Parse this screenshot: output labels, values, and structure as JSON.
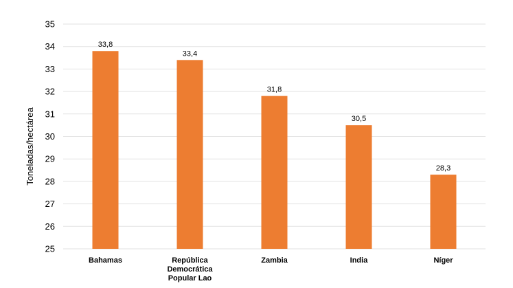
{
  "chart_data": {
    "type": "bar",
    "categories": [
      [
        "Bahamas"
      ],
      [
        "República",
        "Democrática",
        "Popular Lao"
      ],
      [
        "Zambia"
      ],
      [
        "India"
      ],
      [
        "Níger"
      ]
    ],
    "values": [
      33.8,
      33.4,
      31.8,
      30.5,
      28.3
    ],
    "value_labels": [
      "33,8",
      "33,4",
      "31,8",
      "30,5",
      "28,3"
    ],
    "ylabel": "Toneladas/hectárea",
    "ylim": [
      25,
      35
    ],
    "yticks": [
      25,
      26,
      27,
      28,
      29,
      30,
      31,
      32,
      33,
      34,
      35
    ],
    "grid": true,
    "bar_color": "#ED7D31"
  }
}
